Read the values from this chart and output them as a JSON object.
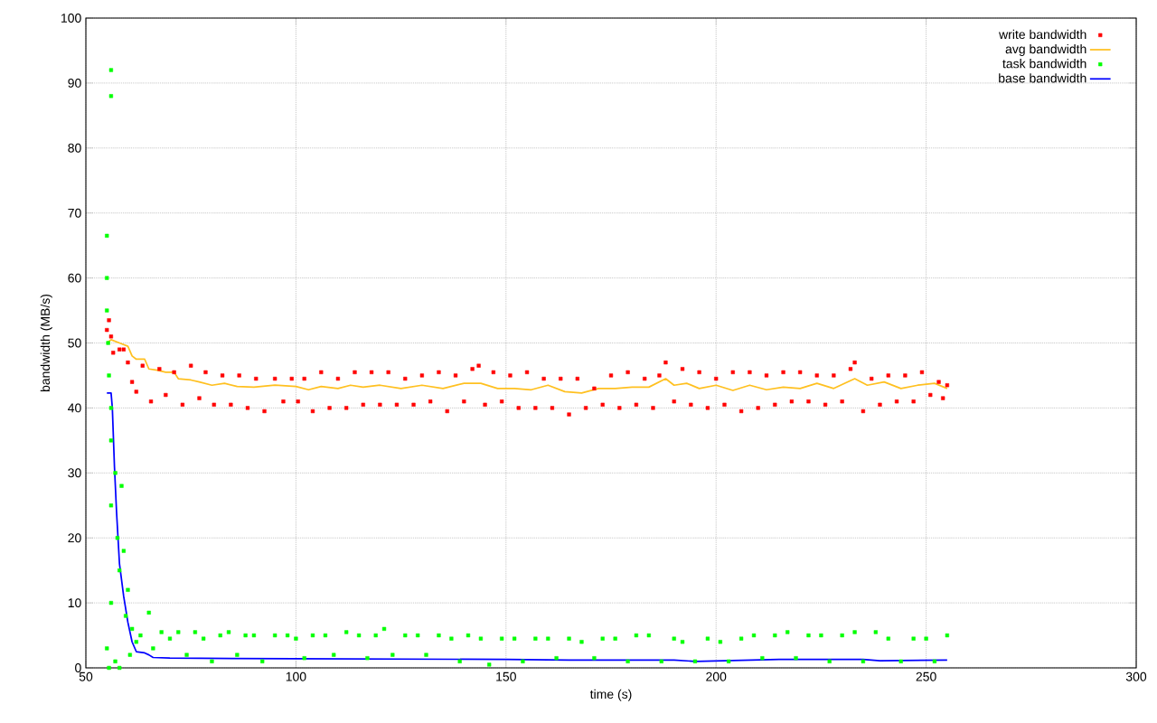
{
  "chart_data": {
    "type": "line",
    "xlabel": "time (s)",
    "ylabel": "bandwidth (MB/s)",
    "xlim": [
      50,
      300
    ],
    "xticks": [
      50,
      100,
      150,
      200,
      250,
      300
    ],
    "ylim": [
      0,
      100
    ],
    "yticks": [
      0,
      10,
      20,
      30,
      40,
      50,
      60,
      70,
      80,
      90,
      100
    ],
    "grid": true,
    "legend": "top right",
    "series": [
      {
        "name": "write bandwidth",
        "type": "scatter",
        "marker": "square",
        "color": "#ff0000",
        "x": [
          55,
          55.5,
          56,
          56.5,
          58,
          59,
          60,
          61,
          62,
          63.5,
          65.5,
          67.5,
          69,
          71,
          73,
          75,
          77,
          78.5,
          80.5,
          82.5,
          84.5,
          86.5,
          88.5,
          90.5,
          92.5,
          95,
          97,
          99,
          100.5,
          102,
          104,
          106,
          108,
          110,
          112,
          114,
          116,
          118,
          120,
          122,
          124,
          126,
          128,
          130,
          132,
          134,
          136,
          138,
          140,
          142,
          143.5,
          145,
          147,
          149,
          151,
          153,
          155,
          157,
          159,
          161,
          163,
          165,
          167,
          169,
          171,
          173,
          175,
          177,
          179,
          181,
          183,
          185,
          186.5,
          188,
          190,
          192,
          194,
          196,
          198,
          200,
          202,
          204,
          206,
          208,
          210,
          212,
          214,
          216,
          218,
          220,
          222,
          224,
          226,
          228,
          230,
          232,
          233,
          235,
          237,
          239,
          241,
          243,
          245,
          247,
          249,
          251,
          253,
          254,
          255
        ],
        "values": [
          52,
          53.5,
          51,
          48.5,
          49,
          49,
          47,
          44,
          42.5,
          46.5,
          41,
          46,
          42,
          45.5,
          40.5,
          46.5,
          41.5,
          45.5,
          40.5,
          45,
          40.5,
          45,
          40,
          44.5,
          39.5,
          44.5,
          41,
          44.5,
          41,
          44.5,
          39.5,
          45.5,
          40,
          44.5,
          40,
          45.5,
          40.5,
          45.5,
          40.5,
          45.5,
          40.5,
          44.5,
          40.5,
          45,
          41,
          45.5,
          39.5,
          45,
          41,
          46,
          46.5,
          40.5,
          45.5,
          41,
          45,
          40,
          45.5,
          40,
          44.5,
          40,
          44.5,
          39,
          44.5,
          40,
          43,
          40.5,
          45,
          40,
          45.5,
          40.5,
          44.5,
          40,
          45,
          47,
          41,
          46,
          40.5,
          45.5,
          40,
          44.5,
          40.5,
          45.5,
          39.5,
          45.5,
          40,
          45,
          40.5,
          45.5,
          41,
          45.5,
          41,
          45,
          40.5,
          45,
          41,
          46,
          47,
          39.5,
          44.5,
          40.5,
          45,
          41,
          45,
          41,
          45.5,
          42,
          44,
          41.5,
          43.5
        ]
      },
      {
        "name": "avg bandwidth",
        "color": "#ffc020",
        "x": [
          55,
          56,
          58,
          60,
          61,
          62,
          64,
          65,
          67,
          69,
          71,
          72,
          75,
          77,
          80,
          83,
          86,
          90,
          95,
          100,
          103,
          106,
          110,
          113,
          116,
          120,
          125,
          130,
          135,
          140,
          144,
          148,
          152,
          156,
          160,
          164,
          168,
          172,
          176,
          180,
          184,
          188,
          190,
          193,
          196,
          200,
          204,
          208,
          212,
          216,
          220,
          224,
          228,
          233,
          236,
          240,
          244,
          248,
          252,
          255
        ],
        "values": [
          50,
          50.5,
          50,
          49.5,
          48,
          47.5,
          47.5,
          46,
          45.8,
          45.5,
          45.5,
          44.5,
          44.3,
          44,
          43.5,
          43.8,
          43.3,
          43.2,
          43.5,
          43.3,
          42.8,
          43.3,
          43,
          43.5,
          43.2,
          43.5,
          43,
          43.5,
          43,
          43.8,
          43.8,
          43,
          43,
          42.8,
          43.5,
          42.5,
          42.3,
          43,
          43,
          43.2,
          43.2,
          44.5,
          43.5,
          43.8,
          43,
          43.5,
          42.7,
          43.5,
          42.8,
          43.2,
          43,
          43.8,
          43,
          44.5,
          43.5,
          44,
          43,
          43.5,
          43.8,
          43
        ]
      },
      {
        "name": "task bandwidth",
        "type": "scatter",
        "marker": "square",
        "color": "#00ff00",
        "x": [
          56,
          56,
          55,
          55,
          55,
          55.3,
          55.5,
          56,
          56,
          57,
          56,
          57.5,
          58,
          58.5,
          59,
          60,
          59.5,
          61,
          62,
          55,
          56,
          57,
          55.5,
          58,
          60.5,
          63,
          65,
          66,
          68,
          70,
          72,
          74,
          76,
          78,
          80,
          82,
          84,
          86,
          88,
          90,
          92,
          95,
          98,
          100,
          102,
          104,
          107,
          109,
          112,
          115,
          117,
          119,
          121,
          123,
          126,
          129,
          131,
          134,
          137,
          139,
          141,
          144,
          146,
          149,
          152,
          154,
          157,
          160,
          162,
          165,
          168,
          171,
          173,
          176,
          179,
          181,
          184,
          187,
          190,
          192,
          195,
          198,
          201,
          203,
          206,
          209,
          211,
          214,
          217,
          219,
          222,
          225,
          227,
          230,
          233,
          235,
          238,
          241,
          244,
          247,
          250,
          252,
          255
        ],
        "values": [
          92,
          88,
          66.5,
          60,
          55,
          50,
          45,
          40,
          35,
          30,
          25,
          20,
          15,
          28,
          18,
          12,
          8,
          6,
          4,
          3,
          10,
          1,
          0,
          0,
          2,
          5,
          8.5,
          3,
          5.5,
          4.5,
          5.5,
          2,
          5.5,
          4.5,
          1,
          5,
          5.5,
          2,
          5,
          5,
          1,
          5,
          5,
          4.5,
          1.5,
          5,
          5,
          2,
          5.5,
          5,
          1.5,
          5,
          6,
          2,
          5,
          5,
          2,
          5,
          4.5,
          1,
          5,
          4.5,
          0.5,
          4.5,
          4.5,
          1,
          4.5,
          4.5,
          1.5,
          4.5,
          4,
          1.5,
          4.5,
          4.5,
          1,
          5,
          5,
          1,
          4.5,
          4,
          1,
          4.5,
          4,
          1,
          4.5,
          5,
          1.5,
          5,
          5.5,
          1.5,
          5,
          5,
          1,
          5,
          5.5,
          1,
          5.5,
          4.5,
          1,
          4.5,
          4.5,
          1,
          5
        ]
      },
      {
        "name": "base bandwidth",
        "color": "#0000ff",
        "x": [
          55,
          56,
          56.3,
          56.8,
          57.3,
          58,
          59,
          60,
          61,
          62,
          64,
          65,
          66,
          70,
          100,
          150,
          165,
          190,
          195,
          215,
          235,
          239,
          255
        ],
        "values": [
          42.3,
          42.3,
          40,
          31,
          24,
          16,
          11,
          7,
          4,
          2.5,
          2.3,
          2,
          1.6,
          1.5,
          1.4,
          1.3,
          1.2,
          1.2,
          1.0,
          1.3,
          1.3,
          1.1,
          1.2
        ]
      }
    ]
  }
}
